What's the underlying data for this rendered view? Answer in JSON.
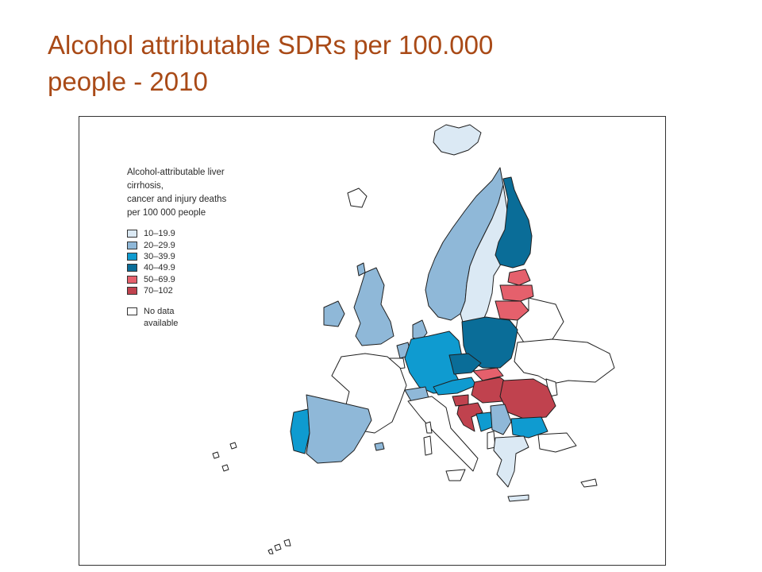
{
  "slide": {
    "title_line1": "Alcohol attributable SDRs per 100.000",
    "title_line2": "people - 2010"
  },
  "legend": {
    "title_lines": [
      "Alcohol-attributable liver cirrhosis,",
      "cancer and injury deaths",
      "per 100 000 people"
    ],
    "classes": [
      {
        "label": "10–19.9",
        "color": "#dbe9f4"
      },
      {
        "label": "20–29.9",
        "color": "#8fb8d8"
      },
      {
        "label": "30–39.9",
        "color": "#0f9bd0"
      },
      {
        "label": "40–49.9",
        "color": "#0a6d98"
      },
      {
        "label": "50–69.9",
        "color": "#e5606c"
      },
      {
        "label": "70–102",
        "color": "#c0424e"
      }
    ],
    "no_data_line1": "No data",
    "no_data_line2": "available",
    "no_data_color": "#ffffff"
  },
  "map_data": {
    "Iceland": "10–19.9",
    "Norway": "20–29.9",
    "Sweden": "10–19.9",
    "Finland": "40–49.9",
    "Estonia": "50–69.9",
    "Latvia": "50–69.9",
    "Lithuania": "50–69.9",
    "Ireland": "20–29.9",
    "United Kingdom": "20–29.9",
    "Denmark": "20–29.9",
    "Netherlands": "20–29.9",
    "Germany": "30–39.9",
    "Poland": "40–49.9",
    "Czech Republic": "40–49.9",
    "Austria": "30–39.9",
    "Switzerland": "20–29.9",
    "Slovakia": "50–69.9",
    "Hungary": "70–102",
    "Slovenia": "70–102",
    "Croatia": "70–102",
    "Romania": "70–102",
    "Bosnia and Herzegovina": "30–39.9",
    "Serbia": "20–29.9",
    "Bulgaria": "30–39.9",
    "Greece": "10–19.9",
    "Portugal": "30–39.9",
    "Spain": "20–29.9",
    "France": "no data",
    "Italy": "no data",
    "Belgium": "no data",
    "Belarus": "no data",
    "Ukraine": "no data",
    "Moldova": "no data",
    "Albania": "no data",
    "Turkey": "no data"
  }
}
